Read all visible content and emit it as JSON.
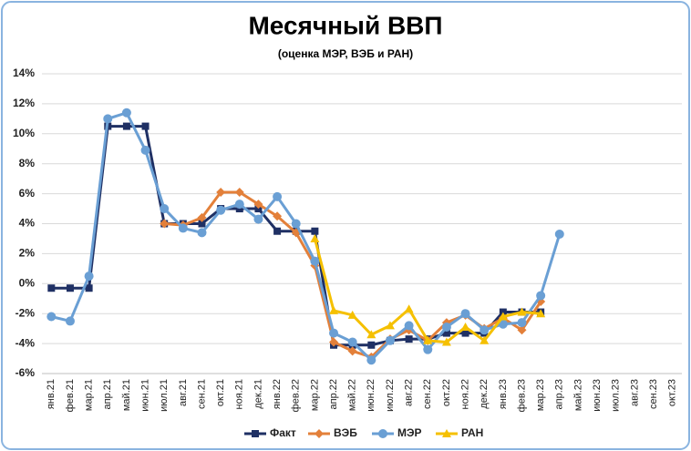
{
  "chart_data": {
    "type": "line",
    "title": "Месячный ВВП",
    "subtitle": "(оценка МЭР, ВЭБ и РАН)",
    "categories": [
      "янв.21",
      "фев.21",
      "мар.21",
      "апр.21",
      "май.21",
      "июн.21",
      "июл.21",
      "авг.21",
      "сен.21",
      "окт.21",
      "ноя.21",
      "дек.21",
      "янв.22",
      "фев.22",
      "мар.22",
      "апр.22",
      "май.22",
      "июн.22",
      "июл.22",
      "авг.22",
      "сен.22",
      "окт.22",
      "ноя.22",
      "дек.22",
      "янв.23",
      "фев.23",
      "мар.23",
      "апр.23",
      "май.23",
      "июн.23",
      "июл.23",
      "авг.23",
      "сен.23",
      "окт.23"
    ],
    "ylim": [
      -6,
      14
    ],
    "yticks": [
      {
        "value": -6,
        "label": "-6%"
      },
      {
        "value": -4,
        "label": "-4%"
      },
      {
        "value": -2,
        "label": "-2%"
      },
      {
        "value": 0,
        "label": "0%"
      },
      {
        "value": 2,
        "label": "2%"
      },
      {
        "value": 4,
        "label": "4%"
      },
      {
        "value": 6,
        "label": "6%"
      },
      {
        "value": 8,
        "label": "8%"
      },
      {
        "value": 10,
        "label": "10%"
      },
      {
        "value": 12,
        "label": "12%"
      },
      {
        "value": 14,
        "label": "14%"
      }
    ],
    "grid": true,
    "legend": "bottom",
    "series": [
      {
        "name": "Факт",
        "color": "#1f3064",
        "marker": "square",
        "values": [
          -0.3,
          -0.3,
          -0.3,
          10.5,
          10.5,
          10.5,
          4.0,
          4.0,
          4.0,
          5.0,
          5.0,
          5.0,
          3.5,
          3.5,
          3.5,
          -4.1,
          -4.1,
          -4.1,
          -3.8,
          -3.7,
          -3.7,
          -3.3,
          -3.3,
          -3.3,
          -1.9,
          -1.9,
          -1.9,
          null,
          null,
          null,
          null,
          null,
          null,
          null
        ]
      },
      {
        "name": "ВЭБ",
        "color": "#e3803a",
        "marker": "diamond",
        "values": [
          null,
          null,
          null,
          null,
          null,
          null,
          4.0,
          3.9,
          4.4,
          6.1,
          6.1,
          5.3,
          4.5,
          3.4,
          1.2,
          -3.9,
          -4.5,
          -4.9,
          -3.7,
          -3.1,
          -3.8,
          -2.6,
          -2.1,
          -3.0,
          -2.3,
          -3.1,
          -1.2,
          null,
          null,
          null,
          null,
          null,
          null,
          null
        ]
      },
      {
        "name": "МЭР",
        "color": "#6a9fd4",
        "marker": "circle",
        "values": [
          -2.2,
          -2.5,
          0.5,
          11.0,
          11.4,
          8.9,
          5.0,
          3.7,
          3.4,
          4.9,
          5.3,
          4.3,
          5.8,
          4.0,
          1.5,
          -3.3,
          -3.9,
          -5.1,
          -3.8,
          -2.8,
          -4.4,
          -2.9,
          -2.0,
          -3.1,
          -2.7,
          -2.6,
          -0.8,
          3.3,
          null,
          null,
          null,
          null,
          null,
          null
        ]
      },
      {
        "name": "РАН",
        "color": "#f5c000",
        "marker": "triangle",
        "values": [
          null,
          null,
          null,
          null,
          null,
          null,
          null,
          null,
          null,
          null,
          null,
          null,
          null,
          null,
          3.0,
          -1.8,
          -2.1,
          -3.4,
          -2.8,
          -1.7,
          -3.8,
          -3.9,
          -2.9,
          -3.8,
          -2.2,
          -1.9,
          -2.0,
          null,
          null,
          null,
          null,
          null,
          null,
          null
        ]
      }
    ]
  }
}
